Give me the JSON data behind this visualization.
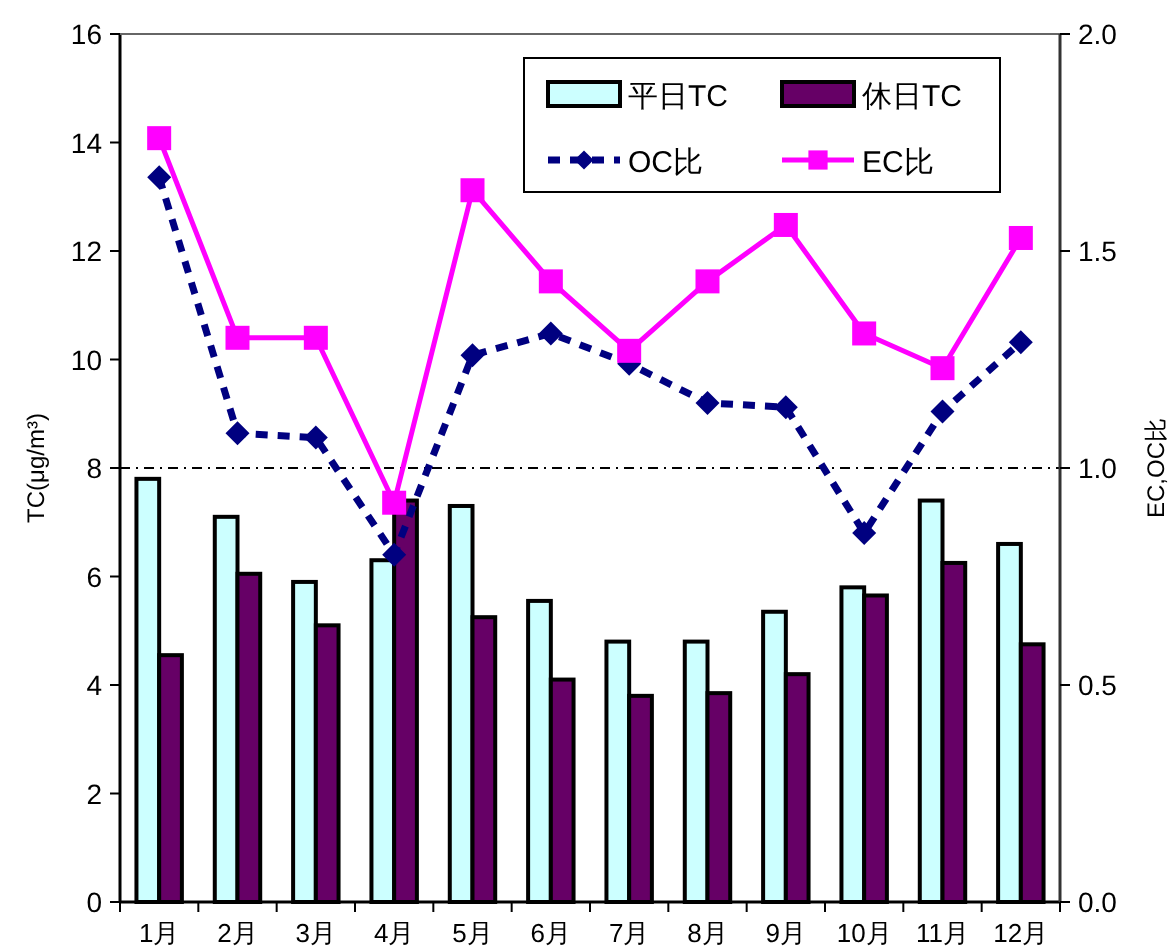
{
  "chart_data": {
    "type": "bar",
    "categories": [
      "1月",
      "2月",
      "3月",
      "4月",
      "5月",
      "6月",
      "7月",
      "8月",
      "9月",
      "10月",
      "11月",
      "12月"
    ],
    "series": [
      {
        "name": "平日TC",
        "color": "#ccffff",
        "values": [
          7.8,
          7.1,
          5.9,
          6.3,
          7.3,
          5.55,
          4.8,
          4.8,
          5.35,
          5.8,
          7.4,
          6.6
        ]
      },
      {
        "name": "休日TC",
        "color": "#660066",
        "values": [
          4.55,
          6.05,
          5.1,
          7.4,
          5.25,
          4.1,
          3.8,
          3.85,
          4.2,
          5.65,
          6.25,
          4.75
        ]
      },
      {
        "name": "OC比",
        "type": "line",
        "axis": "y2",
        "color": "#000080",
        "marker": "diamond",
        "line_style": "dashed",
        "values": [
          1.67,
          1.08,
          1.07,
          0.8,
          1.26,
          1.31,
          1.24,
          1.15,
          1.14,
          0.85,
          1.13,
          1.29
        ]
      },
      {
        "name": "EC比",
        "type": "line",
        "axis": "y2",
        "color": "#ff00ff",
        "marker": "square",
        "line_style": "solid",
        "values": [
          1.76,
          1.3,
          1.3,
          0.92,
          1.64,
          1.43,
          1.27,
          1.43,
          1.56,
          1.31,
          1.23,
          1.53
        ]
      }
    ],
    "ylabel": "TC(μg/m³)",
    "y2label": "EC,OC比",
    "ylim": [
      0,
      16
    ],
    "yticks": [
      0,
      2,
      4,
      6,
      8,
      10,
      12,
      14,
      16
    ],
    "y2lim": [
      0,
      2
    ],
    "y2ticks": [
      {
        "value": 0,
        "label": "0.0"
      },
      {
        "value": 0.5,
        "label": "0.5"
      },
      {
        "value": 1,
        "label": "1.0"
      },
      {
        "value": 1.5,
        "label": "1.5"
      },
      {
        "value": 2,
        "label": "2.0"
      }
    ],
    "ref_lines": [
      {
        "axis": "y2",
        "value": 1,
        "color": "#000000",
        "line_style": "dashdot"
      }
    ],
    "legend": "top right",
    "grid": false
  }
}
